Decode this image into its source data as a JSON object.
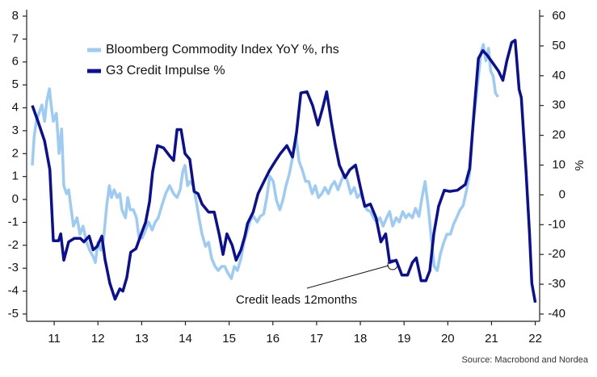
{
  "chart_data": {
    "type": "line",
    "y_label_right": "%",
    "annotation": "Credit leads 12months",
    "source": "Source: Macrobond and Nordea",
    "legend": "top-left",
    "xlim": [
      2010.87,
      2022.6
    ],
    "xticks": [
      {
        "value": 2011.5,
        "label": "11"
      },
      {
        "value": 2012.5,
        "label": "12"
      },
      {
        "value": 2013.5,
        "label": "13"
      },
      {
        "value": 2014.5,
        "label": "14"
      },
      {
        "value": 2015.5,
        "label": "15"
      },
      {
        "value": 2016.5,
        "label": "16"
      },
      {
        "value": 2017.5,
        "label": "17"
      },
      {
        "value": 2018.5,
        "label": "18"
      },
      {
        "value": 2019.5,
        "label": "19"
      },
      {
        "value": 2020.5,
        "label": "20"
      },
      {
        "value": 2021.5,
        "label": "21"
      },
      {
        "value": 2022.5,
        "label": "22"
      }
    ],
    "ylim": [
      -5,
      8
    ],
    "yticks": [
      -5,
      -4,
      -3,
      -2,
      -1,
      0,
      1,
      2,
      3,
      4,
      5,
      6,
      7,
      8
    ],
    "y2lim": [
      -40,
      60
    ],
    "y2ticks": [
      -40,
      -30,
      -20,
      -10,
      0,
      10,
      20,
      30,
      40,
      50,
      60
    ],
    "series": [
      {
        "name": "Bloomberg Commodity Index YoY %, rhs",
        "color": "#9dcbf4",
        "axis": "y2",
        "x": [
          2011.0,
          2011.04,
          2011.09,
          2011.15,
          2011.22,
          2011.28,
          2011.33,
          2011.39,
          2011.43,
          2011.48,
          2011.55,
          2011.61,
          2011.67,
          2011.72,
          2011.78,
          2011.83,
          2011.89,
          2011.94,
          2012.02,
          2012.09,
          2012.16,
          2012.24,
          2012.31,
          2012.39,
          2012.44,
          2012.5,
          2012.57,
          2012.63,
          2012.7,
          2012.76,
          2012.81,
          2012.87,
          2012.94,
          2013.0,
          2013.05,
          2013.13,
          2013.18,
          2013.24,
          2013.31,
          2013.38,
          2013.44,
          2013.51,
          2013.59,
          2013.66,
          2013.74,
          2013.81,
          2013.88,
          2013.96,
          2014.05,
          2014.14,
          2014.23,
          2014.31,
          2014.38,
          2014.44,
          2014.49,
          2014.55,
          2014.6,
          2014.68,
          2014.75,
          2014.81,
          2014.88,
          2014.96,
          2015.03,
          2015.1,
          2015.18,
          2015.25,
          2015.33,
          2015.4,
          2015.47,
          2015.55,
          2015.62,
          2015.69,
          2015.77,
          2015.84,
          2015.92,
          2015.99,
          2016.06,
          2016.14,
          2016.21,
          2016.29,
          2016.36,
          2016.43,
          2016.51,
          2016.58,
          2016.66,
          2016.73,
          2016.8,
          2016.88,
          2016.95,
          2017.03,
          2017.1,
          2017.17,
          2017.25,
          2017.32,
          2017.4,
          2017.47,
          2017.54,
          2017.62,
          2017.69,
          2017.77,
          2017.84,
          2017.91,
          2017.99,
          2018.06,
          2018.13,
          2018.21,
          2018.28,
          2018.36,
          2018.43,
          2018.5,
          2018.58,
          2018.65,
          2018.73,
          2018.8,
          2018.87,
          2018.95,
          2019.02,
          2019.1,
          2019.17,
          2019.24,
          2019.32,
          2019.39,
          2019.47,
          2019.54,
          2019.61,
          2019.69,
          2019.76,
          2019.84,
          2019.91,
          2019.98,
          2020.06,
          2020.13,
          2020.19,
          2020.26,
          2020.33,
          2020.41,
          2020.48,
          2020.56,
          2020.63,
          2020.7,
          2020.78,
          2020.85,
          2020.93,
          2021.0,
          2021.07,
          2021.15,
          2021.2,
          2021.26,
          2021.31,
          2021.37,
          2021.43,
          2021.48,
          2021.54,
          2021.59,
          2021.65
        ],
        "values": [
          9.9,
          19.3,
          24.7,
          27.4,
          30.2,
          24.7,
          31.5,
          35.6,
          30.2,
          24.7,
          27.4,
          13.9,
          22.1,
          3.1,
          0.4,
          1.7,
          -5.0,
          -10.5,
          -7.7,
          -13.2,
          -10.5,
          -15.9,
          -18.6,
          -20.7,
          -22.7,
          -15.9,
          -18.6,
          -14.5,
          -3.6,
          3.1,
          -0.9,
          1.7,
          -0.9,
          0.4,
          -5.0,
          -7.7,
          -0.9,
          -5.0,
          -5.0,
          -7.7,
          -14.5,
          -14.5,
          -11.8,
          -9.1,
          -11.8,
          -9.1,
          -7.7,
          -3.6,
          0.4,
          3.1,
          0.4,
          -0.9,
          1.7,
          7.9,
          9.9,
          3.1,
          4.5,
          3.1,
          -2.3,
          -7.7,
          -13.2,
          -17.3,
          -15.9,
          -21.3,
          -24.0,
          -25.4,
          -24.0,
          -24.0,
          -26.2,
          -28.1,
          -24.0,
          -25.4,
          -21.3,
          -15.9,
          -11.8,
          -8.3,
          -7.2,
          -9.1,
          -7.2,
          -6.4,
          -0.9,
          6.3,
          4.5,
          -1.7,
          -5.0,
          -1.7,
          3.1,
          7.2,
          12.6,
          19.3,
          11.2,
          8.5,
          4.5,
          4.5,
          0.4,
          3.1,
          -0.9,
          0.4,
          2.5,
          0.4,
          3.1,
          4.5,
          1.7,
          4.5,
          7.0,
          4.5,
          0.4,
          2.5,
          -0.9,
          0.4,
          -2.3,
          -5.0,
          -5.6,
          -7.7,
          -9.1,
          -7.7,
          -10.5,
          -7.7,
          -5.6,
          -10.5,
          -7.7,
          -9.1,
          -5.6,
          -7.7,
          -6.4,
          -7.7,
          -4.5,
          -7.2,
          -0.9,
          4.5,
          -5.0,
          -15.9,
          -24.0,
          -25.4,
          -19.9,
          -15.9,
          -13.2,
          -13.2,
          -9.9,
          -7.7,
          -5.0,
          -3.6,
          1.7,
          7.2,
          22.1,
          32.9,
          39.7,
          47.8,
          50.5,
          45.0,
          49.2,
          41.6,
          39.7,
          34.2,
          32.9
        ]
      },
      {
        "name": "G3 Credit Impulse %",
        "color": "#0b0f94",
        "x": [
          2011.0,
          2011.13,
          2011.28,
          2011.4,
          2011.48,
          2011.6,
          2011.65,
          2011.72,
          2011.83,
          2011.96,
          2012.1,
          2012.18,
          2012.3,
          2012.39,
          2012.48,
          2012.59,
          2012.66,
          2012.77,
          2012.89,
          2013.0,
          2013.07,
          2013.16,
          2013.25,
          2013.37,
          2013.5,
          2013.59,
          2013.68,
          2013.75,
          2013.86,
          2014.0,
          2014.14,
          2014.23,
          2014.31,
          2014.4,
          2014.49,
          2014.6,
          2014.7,
          2014.79,
          2014.88,
          2015.03,
          2015.16,
          2015.27,
          2015.36,
          2015.45,
          2015.57,
          2015.66,
          2015.77,
          2015.86,
          2015.92,
          2016.05,
          2016.16,
          2016.3,
          2016.42,
          2016.55,
          2016.67,
          2016.82,
          2016.95,
          2017.04,
          2017.14,
          2017.28,
          2017.41,
          2017.53,
          2017.64,
          2017.73,
          2017.84,
          2017.93,
          2018.02,
          2018.15,
          2018.26,
          2018.39,
          2018.5,
          2018.6,
          2018.73,
          2018.86,
          2018.97,
          2019.08,
          2019.17,
          2019.32,
          2019.45,
          2019.58,
          2019.69,
          2019.78,
          2019.89,
          2020.0,
          2020.09,
          2020.18,
          2020.29,
          2020.42,
          2020.54,
          2020.72,
          2020.9,
          2021.0,
          2021.09,
          2021.2,
          2021.3,
          2021.4,
          2021.53,
          2021.66,
          2021.76,
          2021.85,
          2021.96,
          2022.04,
          2022.13,
          2022.18,
          2022.29,
          2022.37,
          2022.42,
          2022.5
        ],
        "values": [
          4.1,
          3.4,
          2.55,
          1.3,
          -1.8,
          -1.8,
          -1.5,
          -2.65,
          -1.85,
          -1.7,
          -1.7,
          -1.85,
          -1.6,
          -2.2,
          -2.05,
          -1.6,
          -2.6,
          -3.65,
          -4.35,
          -3.9,
          -4.0,
          -3.4,
          -2.3,
          -2.15,
          -1.45,
          -1.0,
          -0.1,
          1.2,
          2.35,
          2.25,
          1.9,
          1.7,
          3.05,
          3.05,
          2.0,
          1.75,
          0.35,
          0.25,
          -0.2,
          -0.55,
          -0.55,
          -1.5,
          -2.4,
          -1.5,
          -2.0,
          -2.65,
          -2.2,
          -1.6,
          -1.05,
          -0.55,
          0.25,
          0.8,
          1.25,
          1.65,
          2.0,
          2.35,
          1.85,
          2.9,
          4.65,
          4.7,
          4.1,
          3.25,
          4.0,
          4.7,
          3.35,
          2.35,
          1.5,
          0.95,
          1.3,
          1.5,
          0.55,
          -0.3,
          -0.2,
          -0.8,
          -1.85,
          -1.5,
          -2.75,
          -2.65,
          -3.3,
          -3.3,
          -2.75,
          -2.55,
          -3.55,
          -3.55,
          -3.1,
          -1.5,
          -0.3,
          0.4,
          0.35,
          0.4,
          0.65,
          1.35,
          3.6,
          6.15,
          6.5,
          6.3,
          5.95,
          5.6,
          5.2,
          6.05,
          6.85,
          6.95,
          4.8,
          4.45,
          1.2,
          -1.5,
          -3.65,
          -4.5
        ]
      }
    ]
  }
}
